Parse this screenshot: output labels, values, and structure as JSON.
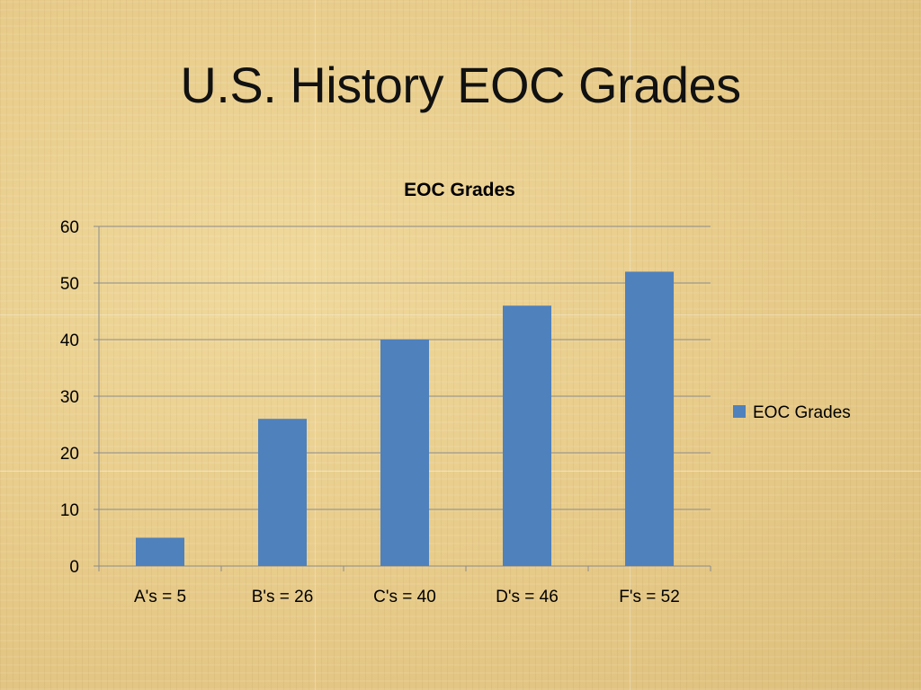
{
  "slide": {
    "title": "U.S. History EOC Grades"
  },
  "chart_data": {
    "type": "bar",
    "title": "EOC Grades",
    "categories": [
      "A's = 5",
      "B's = 26",
      "C's = 40",
      "D's = 46",
      "F's = 52"
    ],
    "series": [
      {
        "name": "EOC Grades",
        "values": [
          5,
          26,
          40,
          46,
          52
        ],
        "color": "#4f81bd"
      }
    ],
    "ylim": [
      0,
      60
    ],
    "yticks": [
      0,
      10,
      20,
      30,
      40,
      50,
      60
    ],
    "grid": true,
    "legend": "right",
    "xlabel": "",
    "ylabel": ""
  }
}
